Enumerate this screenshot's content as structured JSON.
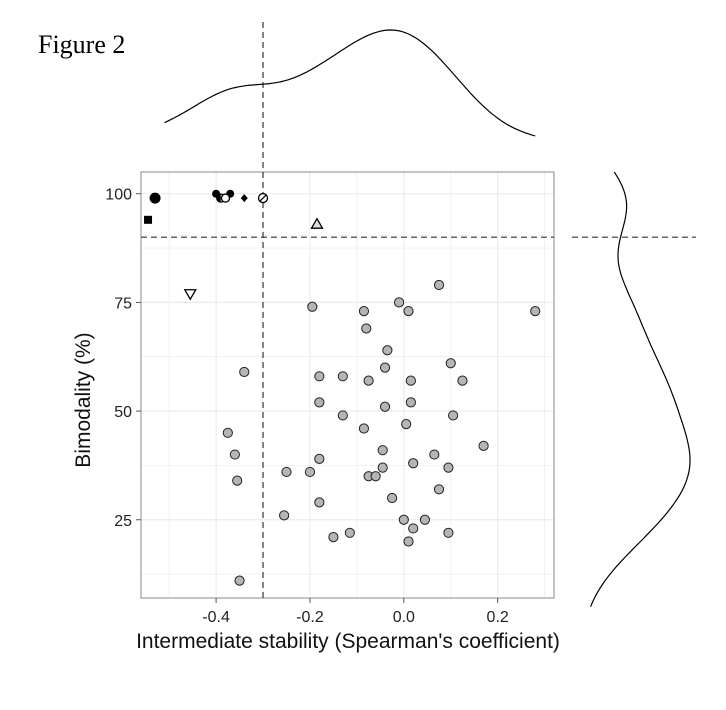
{
  "figure_label": "Figure 2",
  "chart_data": {
    "type": "scatter",
    "xlabel": "Intermediate stability (Spearman's coefficient)",
    "ylabel": "Bimodality (%)",
    "xlim": [
      -0.56,
      0.32
    ],
    "ylim": [
      7,
      105
    ],
    "x_ticks": [
      -0.4,
      -0.2,
      0.0,
      0.2
    ],
    "x_tick_labels": [
      "-0.4",
      "-0.2",
      "0.0",
      "0.2"
    ],
    "y_ticks": [
      25,
      50,
      75,
      100
    ],
    "y_tick_labels": [
      "25",
      "50",
      "75",
      "100"
    ],
    "grid": true,
    "background": "#ffffff",
    "grid_color": "#ebebeb",
    "threshold_x": -0.3,
    "threshold_y": 90,
    "marginal_density": {
      "top": true,
      "right": true
    },
    "special_points": [
      {
        "x": -0.53,
        "y": 99,
        "marker": "filled-circle-large"
      },
      {
        "x": -0.545,
        "y": 94,
        "marker": "filled-square"
      },
      {
        "x": -0.4,
        "y": 100,
        "marker": "filled-circle"
      },
      {
        "x": -0.37,
        "y": 100,
        "marker": "filled-circle"
      },
      {
        "x": -0.39,
        "y": 99,
        "marker": "circle-half"
      },
      {
        "x": -0.38,
        "y": 99,
        "marker": "open-circle"
      },
      {
        "x": -0.34,
        "y": 99,
        "marker": "filled-diamond"
      },
      {
        "x": -0.3,
        "y": 99,
        "marker": "circle-slash"
      },
      {
        "x": -0.185,
        "y": 93,
        "marker": "open-triangle-up"
      },
      {
        "x": -0.455,
        "y": 77,
        "marker": "open-triangle-down"
      }
    ],
    "points": [
      {
        "x": -0.195,
        "y": 74
      },
      {
        "x": -0.085,
        "y": 73
      },
      {
        "x": -0.01,
        "y": 75
      },
      {
        "x": 0.01,
        "y": 73
      },
      {
        "x": 0.075,
        "y": 79
      },
      {
        "x": 0.28,
        "y": 73
      },
      {
        "x": -0.08,
        "y": 69
      },
      {
        "x": -0.035,
        "y": 64
      },
      {
        "x": 0.1,
        "y": 61
      },
      {
        "x": -0.34,
        "y": 59
      },
      {
        "x": -0.04,
        "y": 60
      },
      {
        "x": -0.18,
        "y": 58
      },
      {
        "x": -0.13,
        "y": 58
      },
      {
        "x": -0.075,
        "y": 57
      },
      {
        "x": 0.015,
        "y": 57
      },
      {
        "x": 0.125,
        "y": 57
      },
      {
        "x": -0.18,
        "y": 52
      },
      {
        "x": -0.04,
        "y": 51
      },
      {
        "x": 0.015,
        "y": 52
      },
      {
        "x": -0.13,
        "y": 49
      },
      {
        "x": 0.105,
        "y": 49
      },
      {
        "x": -0.085,
        "y": 46
      },
      {
        "x": 0.005,
        "y": 47
      },
      {
        "x": -0.375,
        "y": 45
      },
      {
        "x": -0.36,
        "y": 40
      },
      {
        "x": -0.045,
        "y": 41
      },
      {
        "x": 0.065,
        "y": 40
      },
      {
        "x": 0.17,
        "y": 42
      },
      {
        "x": -0.18,
        "y": 39
      },
      {
        "x": 0.02,
        "y": 38
      },
      {
        "x": -0.25,
        "y": 36
      },
      {
        "x": -0.2,
        "y": 36
      },
      {
        "x": -0.045,
        "y": 37
      },
      {
        "x": 0.095,
        "y": 37
      },
      {
        "x": -0.355,
        "y": 34
      },
      {
        "x": -0.075,
        "y": 35
      },
      {
        "x": -0.06,
        "y": 35
      },
      {
        "x": 0.075,
        "y": 32
      },
      {
        "x": -0.025,
        "y": 30
      },
      {
        "x": -0.18,
        "y": 29
      },
      {
        "x": -0.255,
        "y": 26
      },
      {
        "x": 0.0,
        "y": 25
      },
      {
        "x": 0.045,
        "y": 25
      },
      {
        "x": 0.02,
        "y": 23
      },
      {
        "x": -0.115,
        "y": 22
      },
      {
        "x": 0.095,
        "y": 22
      },
      {
        "x": -0.15,
        "y": 21
      },
      {
        "x": 0.01,
        "y": 20
      },
      {
        "x": -0.35,
        "y": 11
      }
    ]
  }
}
